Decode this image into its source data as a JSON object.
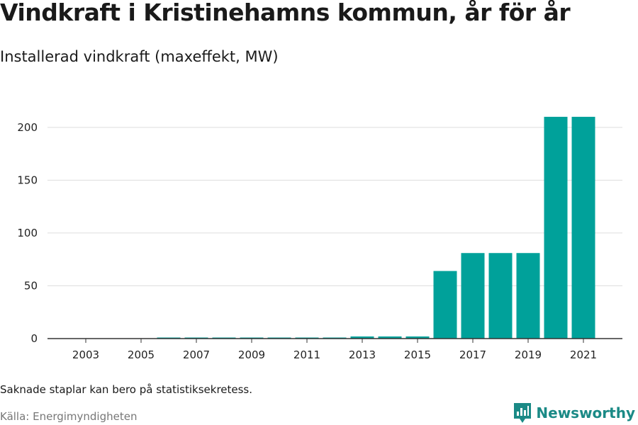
{
  "header": {
    "title": "Vindkraft i Kristinehamns kommun, år för år",
    "subtitle": "Installerad vindkraft (maxeffekt, MW)"
  },
  "footer": {
    "note": "Saknade staplar kan bero på statistiksekretess.",
    "source": "Källa: Energimyndigheten",
    "brand": "Newsworthy",
    "brand_icon": "newsworthy-logo-icon"
  },
  "colors": {
    "bar": "#00a19a",
    "grid": "#dddddd",
    "axis": "#333333",
    "brand": "#1b8a86"
  },
  "chart_data": {
    "type": "bar",
    "categories": [
      "2002",
      "2003",
      "2004",
      "2005",
      "2006",
      "2007",
      "2008",
      "2009",
      "2010",
      "2011",
      "2012",
      "2013",
      "2014",
      "2015",
      "2016",
      "2017",
      "2018",
      "2019",
      "2020",
      "2021"
    ],
    "x_tick_labels": [
      "2003",
      "2005",
      "2007",
      "2009",
      "2011",
      "2013",
      "2015",
      "2017",
      "2019",
      "2021"
    ],
    "values": [
      0,
      0,
      0,
      0,
      1,
      1,
      1,
      1,
      1,
      1,
      1,
      2,
      2,
      2,
      64,
      81,
      81,
      81,
      210,
      210
    ],
    "title": "Vindkraft i Kristinehamns kommun, år för år",
    "subtitle": "Installerad vindkraft (maxeffekt, MW)",
    "xlabel": "",
    "ylabel": "",
    "ylim": [
      0,
      220
    ],
    "yticks": [
      0,
      50,
      100,
      150,
      200
    ],
    "grid": true,
    "legend": "none"
  }
}
